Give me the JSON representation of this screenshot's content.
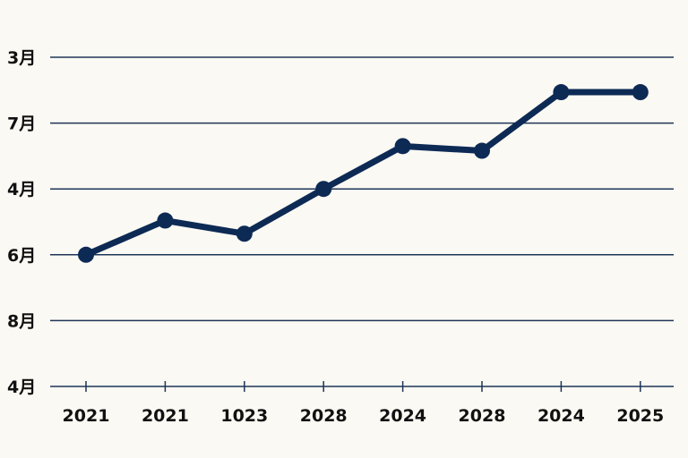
{
  "chart_data": {
    "type": "line",
    "categories": [
      "2021",
      "2021",
      "1023",
      "2028",
      "2024",
      "2028",
      "2024",
      "2025"
    ],
    "y_ticks": [
      "3月",
      "7月",
      "4月",
      "6月",
      "8月",
      "4月"
    ],
    "values": [
      2.0,
      2.52,
      2.32,
      3.0,
      3.65,
      3.58,
      4.47,
      4.47
    ],
    "ylim": [
      0,
      5
    ],
    "grid": true,
    "title": "",
    "xlabel": "",
    "ylabel": "",
    "colors": {
      "line": "#0d2a55",
      "grid": "#1d3557",
      "background": "#fbf9f3",
      "text": "#111111"
    }
  }
}
